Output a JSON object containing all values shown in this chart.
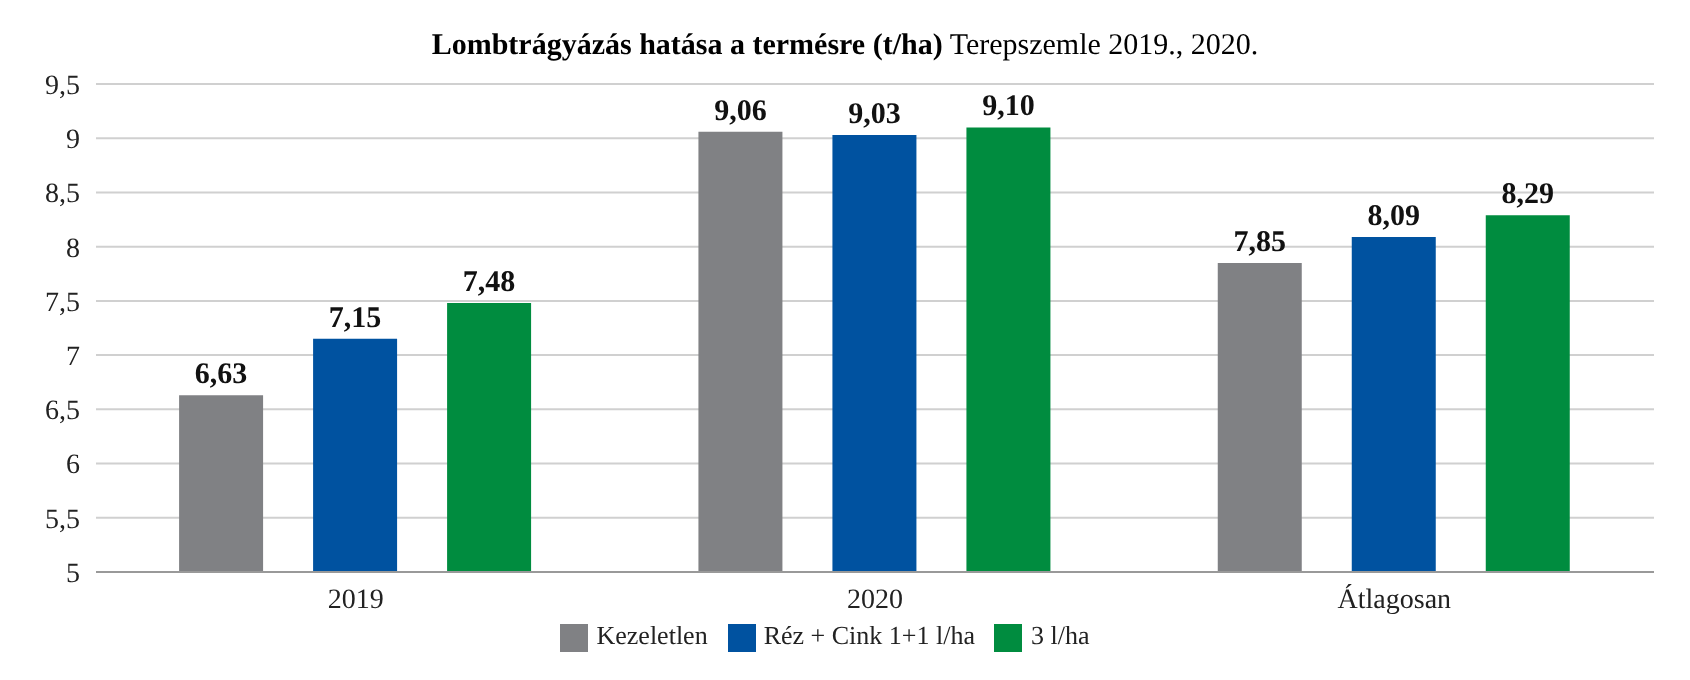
{
  "chart_data": {
    "type": "bar",
    "title": "Lombtrágyázás hatása a termésre (t/ha)",
    "subtitle": "Terepszemle 2019., 2020.",
    "categories": [
      "2019",
      "2020",
      "Átlagosan"
    ],
    "series": [
      {
        "name": "Kezeletlen",
        "color": "#808184",
        "values": [
          6.63,
          9.06,
          7.85
        ],
        "value_labels": [
          "6,63",
          "9,06",
          "7,85"
        ]
      },
      {
        "name": "Réz + Cink 1+1 l/ha",
        "color": "#0052a0",
        "values": [
          7.15,
          9.03,
          8.09
        ],
        "value_labels": [
          "7,15",
          "9,03",
          "8,09"
        ]
      },
      {
        "name": "3 l/ha",
        "color": "#008c3f",
        "values": [
          7.48,
          9.1,
          8.29
        ],
        "value_labels": [
          "7,48",
          "9,10",
          "8,29"
        ]
      }
    ],
    "ylim": [
      5,
      9.5
    ],
    "yticks": [
      5,
      {
        "value": 5.5,
        "label": "5,5"
      },
      6,
      {
        "value": 6.5,
        "label": "6,5"
      },
      7,
      {
        "value": 7.5,
        "label": "7,5"
      },
      8,
      {
        "value": 8.5,
        "label": "8,5"
      },
      9,
      {
        "value": 9.5,
        "label": "9,5"
      }
    ],
    "grid": "y",
    "legend": "bottom"
  }
}
